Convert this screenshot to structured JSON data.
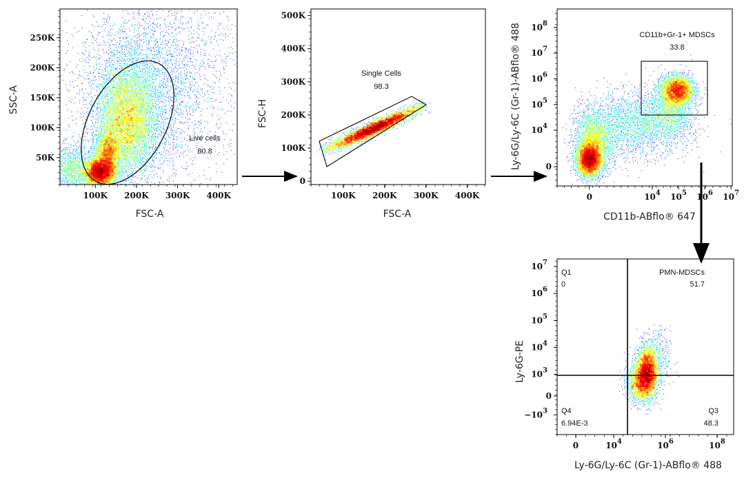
{
  "chart_data": [
    {
      "type": "scatter",
      "id": "p1",
      "xlabel": "FSC-A",
      "ylabel": "SSC-A",
      "xscale": "linear",
      "xlim": [
        14,
        445
      ],
      "yscale": "linear",
      "ylim": [
        5,
        298
      ],
      "units": "K",
      "xticks": [
        {
          "at": 100,
          "label": "100K"
        },
        {
          "at": 200,
          "label": "200K"
        },
        {
          "at": 300,
          "label": "300K"
        },
        {
          "at": 400,
          "label": "400K"
        }
      ],
      "yticks": [
        {
          "at": 50,
          "label": "50K"
        },
        {
          "at": 100,
          "label": "100K"
        },
        {
          "at": 150,
          "label": "150K"
        },
        {
          "at": 200,
          "label": "200K"
        },
        {
          "at": 250,
          "label": "250K"
        }
      ],
      "gate": {
        "shape": "ellipse",
        "name": "Live cells",
        "percent": "80.8"
      },
      "populations": [
        {
          "cx": 110,
          "cy": 25,
          "sx": 18,
          "sy": 12,
          "n": 5000
        },
        {
          "cx": 130,
          "cy": 55,
          "sx": 15,
          "sy": 20,
          "n": 2500
        },
        {
          "cx": 175,
          "cy": 110,
          "sx": 35,
          "sy": 45,
          "n": 7000
        },
        {
          "cx": 200,
          "cy": 150,
          "sx": 70,
          "sy": 70,
          "n": 3500
        },
        {
          "cx": 40,
          "cy": 30,
          "sx": 25,
          "sy": 20,
          "n": 1200
        },
        {
          "cx": 300,
          "cy": 200,
          "sx": 100,
          "sy": 80,
          "n": 1500
        }
      ]
    },
    {
      "type": "scatter",
      "id": "p2",
      "xlabel": "FSC-A",
      "ylabel": "FSC-H",
      "xscale": "linear",
      "xlim": [
        22,
        444
      ],
      "yscale": "linear",
      "ylim": [
        -10,
        520
      ],
      "units": "K",
      "xticks": [
        {
          "at": 100,
          "label": "100K"
        },
        {
          "at": 200,
          "label": "200K"
        },
        {
          "at": 300,
          "label": "300K"
        },
        {
          "at": 400,
          "label": "400K"
        }
      ],
      "yticks": [
        {
          "at": 0,
          "label": "0"
        },
        {
          "at": 100,
          "label": "100K"
        },
        {
          "at": 200,
          "label": "200K"
        },
        {
          "at": 300,
          "label": "300K"
        },
        {
          "at": 400,
          "label": "400K"
        },
        {
          "at": 500,
          "label": "500K"
        }
      ],
      "gate": {
        "shape": "polygon",
        "name": "Single Cells",
        "percent": "98.3"
      },
      "diagonal": {
        "x0": 60,
        "y0": 95,
        "x1": 290,
        "y1": 225,
        "n": 9000,
        "width": 9
      }
    },
    {
      "type": "scatter",
      "id": "p3",
      "xlabel": "CD11b-ABflo® 647",
      "ylabel": "Ly-6G/Ly-6C (Gr-1)-ABflo® 488",
      "xscale": "biexponential (log10 units)",
      "xlim": [
        0.37,
        7.05
      ],
      "yscale": "biexponential (log10 units)",
      "ylim": [
        1.83,
        8.72
      ],
      "xticks": [
        {
          "at": 1.6,
          "base": "0",
          "exp": ""
        },
        {
          "at": 4,
          "base": "10",
          "exp": "4"
        },
        {
          "at": 5,
          "base": "10",
          "exp": "5"
        },
        {
          "at": 6,
          "base": "10",
          "exp": "6"
        },
        {
          "at": 7,
          "base": "10",
          "exp": "7"
        }
      ],
      "yticks": [
        {
          "at": 2.58,
          "base": "0",
          "exp": ""
        },
        {
          "at": 4,
          "base": "10",
          "exp": "4"
        },
        {
          "at": 5,
          "base": "10",
          "exp": "5"
        },
        {
          "at": 6,
          "base": "10",
          "exp": "6"
        },
        {
          "at": 7,
          "base": "10",
          "exp": "7"
        },
        {
          "at": 8,
          "base": "10",
          "exp": "8"
        }
      ],
      "gate": {
        "shape": "rectangle",
        "name": "CD11b+Gr-1+ MDSCs",
        "percent": "33.8",
        "x": [
          3.58,
          6.1
        ],
        "y": [
          4.59,
          6.68
        ]
      },
      "populations": [
        {
          "cx": 1.6,
          "cy": 2.85,
          "sx": 0.22,
          "sy": 0.3,
          "n": 4500
        },
        {
          "cx": 1.75,
          "cy": 3.5,
          "sx": 0.35,
          "sy": 0.6,
          "n": 2500
        },
        {
          "cx": 4.95,
          "cy": 5.55,
          "sx": 0.3,
          "sy": 0.28,
          "n": 3500
        },
        {
          "cx": 3.4,
          "cy": 4.2,
          "sx": 1.0,
          "sy": 0.6,
          "n": 2500
        },
        {
          "cx": 4.7,
          "cy": 4.8,
          "sx": 0.4,
          "sy": 0.5,
          "n": 1200
        }
      ]
    },
    {
      "type": "scatter",
      "id": "p4",
      "xlabel": "Ly-6G/Ly-6C (Gr-1)-ABflo® 488",
      "ylabel": "Ly-6G-PE",
      "xscale": "biexponential (log10 units)",
      "xlim": [
        1.81,
        8.64
      ],
      "yscale": "biexponential (log10 units)",
      "ylim": [
        0.77,
        7.28
      ],
      "xticks": [
        {
          "at": 2.53,
          "base": "0",
          "exp": ""
        },
        {
          "at": 4,
          "base": "10",
          "exp": "4"
        },
        {
          "at": 6,
          "base": "10",
          "exp": "6"
        },
        {
          "at": 8,
          "base": "10",
          "exp": "8"
        }
      ],
      "yticks": [
        {
          "at": 1.5,
          "base": "−10",
          "exp": "3"
        },
        {
          "at": 2.2,
          "base": "0",
          "exp": ""
        },
        {
          "at": 3,
          "base": "10",
          "exp": "3"
        },
        {
          "at": 4,
          "base": "10",
          "exp": "4"
        },
        {
          "at": 5,
          "base": "10",
          "exp": "5"
        },
        {
          "at": 6,
          "base": "10",
          "exp": "6"
        },
        {
          "at": 7,
          "base": "10",
          "exp": "7"
        }
      ],
      "quadrant_gate": {
        "x": 4.53,
        "y": 2.97
      },
      "quadrants": [
        {
          "name": "Q1",
          "percent": "0"
        },
        {
          "name": "PMN-MDSCs",
          "percent": "51.7"
        },
        {
          "name": "Q3",
          "percent": "48.3"
        },
        {
          "name": "Q4",
          "percent": "6.94E-3"
        }
      ],
      "populations": [
        {
          "cx": 5.3,
          "cy": 3.05,
          "sx": 0.2,
          "sy": 0.45,
          "n": 3500
        },
        {
          "cx": 5.0,
          "cy": 2.7,
          "sx": 0.25,
          "sy": 0.35,
          "n": 1500
        },
        {
          "cx": 5.6,
          "cy": 3.6,
          "sx": 0.3,
          "sy": 0.5,
          "n": 500
        }
      ]
    }
  ]
}
